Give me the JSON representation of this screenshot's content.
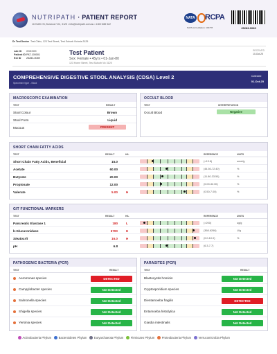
{
  "header": {
    "brand": "NUTRIPATH",
    "brand_suffix": " · PATIENT REPORT",
    "address": "16 Hoffer St, Burwood VIC, 3125  •  info@nutripath.com.au  •  1300 688 522",
    "nata_badge": "NATA",
    "rcpa": "RCPA",
    "nata_accreditation": "NATA Accreditation: 103778",
    "barcode_number": "25283-0089"
  },
  "doctor": {
    "label": "Dr Test Doctor",
    "address": "Test Clinic, 123 Test Street, Test Suburb Victoria 3125"
  },
  "patient": {
    "ids": [
      {
        "label": "Lab ID",
        "value": "XXXXXX"
      },
      {
        "label": "Patient ID",
        "value": "PAT-100001"
      },
      {
        "label": "Ext ID",
        "value": "25283-0089"
      }
    ],
    "name": "Test Patient",
    "details": "Sex: Female  •  45yrs  •  01-Jan-80",
    "address": "123 Home Street, Test Suburb Vic 3125",
    "received_label": "RECEIVED",
    "received_date": "10-Oct-25"
  },
  "report": {
    "title": "COMPREHENSIVE DIGESTIVE STOOL ANALYSIS (CDSA) Level 2",
    "specimen": "Specimen type - Stool",
    "collected_label": "Collected",
    "collected_date": "01-Oct-25"
  },
  "macroscopic": {
    "title": "MACROSCOPIC EXAMINATION",
    "col_test": "TEST",
    "col_result": "RESULT",
    "rows": [
      {
        "test": "Stool Colour",
        "result": "Brown"
      },
      {
        "test": "Stool Form",
        "result": "Liquid"
      },
      {
        "test": "Mucous",
        "result": "PRESENT"
      }
    ]
  },
  "occult": {
    "title": "OCCULT BLOOD",
    "col_test": "TEST",
    "col_interp": "INTERPRETATION",
    "rows": [
      {
        "test": "Occult Blood",
        "result": "Negative"
      }
    ]
  },
  "scfa": {
    "title": "SHORT CHAIN FATTY ACIDS",
    "cols": {
      "test": "TEST",
      "result": "RESULT",
      "hl": "H/L",
      "reference": "REFERENCE",
      "units": "UNITS"
    },
    "rows": [
      {
        "test": "Short Chain Fatty Acids, Beneficial",
        "result": "15.0",
        "flag": "",
        "reference": "(>13.6)",
        "units": "umol/g",
        "pos": 0.22
      },
      {
        "test": "Acetate",
        "result": "60.00",
        "flag": "",
        "reference": "(44.50-72.40)",
        "units": "%",
        "pos": 0.45
      },
      {
        "test": "Butyrate",
        "result": "20.00",
        "flag": "",
        "reference": "(11.80-33.50)",
        "units": "%",
        "pos": 0.38
      },
      {
        "test": "Propionate",
        "result": "12.00",
        "flag": "",
        "reference": "(0.00-32.00)",
        "units": "%",
        "pos": 0.36
      },
      {
        "test": "Valerate",
        "result": "5.00",
        "flag": "H",
        "reference": "(0.50-7.00)",
        "units": "%",
        "pos": 0.75
      }
    ]
  },
  "git": {
    "title": "GIT FUNCTIONAL MARKERS",
    "cols": {
      "test": "TEST",
      "result": "RESULT",
      "hl": "H/L",
      "reference": "REFERENCE",
      "units": "UNITS"
    },
    "rows": [
      {
        "test": "Pancreatic Elastase 1",
        "result": "180",
        "flag": "L",
        "reference": "(>200)",
        "units": "ug/g",
        "pos": 0.08
      },
      {
        "test": "b-Glucuronidase",
        "result": "6700",
        "flag": "H",
        "reference": "(368-6266)",
        "units": "U/g",
        "pos": 0.9
      },
      {
        "test": "Steatocrit",
        "result": "16.0",
        "flag": "H",
        "reference": "(0.0-10.0)",
        "units": "%",
        "pos": 0.92
      },
      {
        "test": "pH",
        "result": "6.8",
        "flag": "",
        "reference": "(6.3-7.7)",
        "units": "",
        "pos": 0.45
      }
    ]
  },
  "bacteria": {
    "title": "PATHOGENIC BACTERIA (PCR)",
    "col_test": "TEST",
    "col_result": "RESULT",
    "rows": [
      {
        "test": "Aeromonas species",
        "result": "DETECTED",
        "dot": "#e5703a"
      },
      {
        "test": "Campylobacter species",
        "result": "Not Detected",
        "dot": "#e5703a"
      },
      {
        "test": "Salmonella species",
        "result": "Not Detected",
        "dot": "#e5703a"
      },
      {
        "test": "Shigella species",
        "result": "Not Detected",
        "dot": "#e5703a"
      },
      {
        "test": "Yersinia species",
        "result": "Not Detected",
        "dot": "#e5703a"
      }
    ]
  },
  "parasites": {
    "title": "PARASITES (PCR)",
    "col_test": "TEST",
    "col_result": "RESULT",
    "rows": [
      {
        "test": "Blastocystis hominis",
        "result": "Not Detected"
      },
      {
        "test": "Cryptosporidium species",
        "result": "Not Detected"
      },
      {
        "test": "Dientamoeba fragilis",
        "result": "DETECTED"
      },
      {
        "test": "Entamoeba histolytica",
        "result": "Not Detected"
      },
      {
        "test": "Giardia intestinalis",
        "result": "Not Detected"
      }
    ]
  },
  "legend": [
    {
      "label": "Actinobacteria Phylum",
      "color": "#c04bb8"
    },
    {
      "label": "Bacteroidetes Phylum",
      "color": "#3c6fd0"
    },
    {
      "label": "Euryarchaeota Phylum",
      "color": "#6f6f86"
    },
    {
      "label": "Firmicutes Phylum",
      "color": "#7cc03a"
    },
    {
      "label": "Proteobacteria Phylum",
      "color": "#e5703a"
    },
    {
      "label": "Verrucomicrobia Phylum",
      "color": "#7a6fd0"
    }
  ]
}
